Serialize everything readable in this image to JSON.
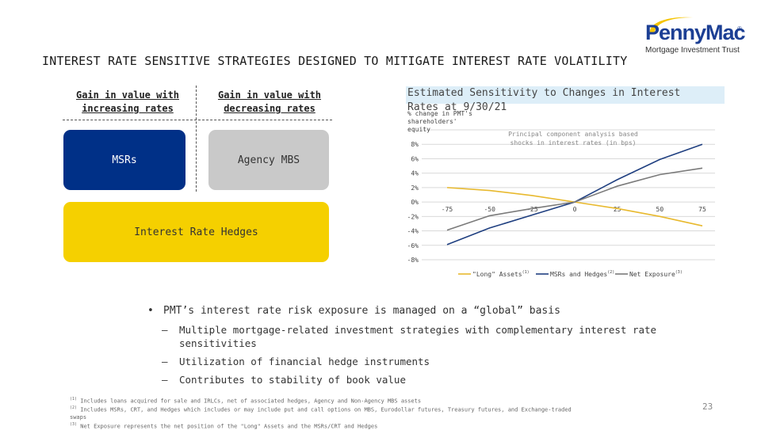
{
  "logo": {
    "name": "PennyMac",
    "registered": "®",
    "tagline": "Mortgage Investment Trust",
    "colors": {
      "blue": "#1c3f94",
      "gold": "#f5c400"
    }
  },
  "slide_title": "INTEREST RATE SENSITIVE STRATEGIES DESIGNED TO MITIGATE INTEREST RATE VOLATILITY",
  "diagram": {
    "head_increasing": "Gain in value with increasing rates",
    "head_decreasing": "Gain in value with decreasing rates",
    "box_msrs": "MSRs",
    "box_agency": "Agency MBS",
    "box_hedges": "Interest Rate Hedges",
    "colors": {
      "msrs": "#003087",
      "agency": "#c9c9c9",
      "hedges": "#f5d000"
    }
  },
  "chart_data": {
    "type": "line",
    "title": "Estimated Sensitivity to Changes in Interest Rates at 9/30/21",
    "ylabel": "% change in PMT's shareholders' equity",
    "annotation": "Principal component analysis based shocks in interest rates (in bps)",
    "x": [
      -75,
      -50,
      -25,
      0,
      25,
      50,
      75
    ],
    "x_ticks": [
      "-75",
      "-50",
      "-25",
      "0",
      "25",
      "50",
      "75"
    ],
    "y_ticks": [
      "-8%",
      "-6%",
      "-4%",
      "-2%",
      "0%",
      "2%",
      "4%",
      "6%",
      "8%"
    ],
    "ylim": [
      -8,
      10
    ],
    "grid": true,
    "legend_position": "bottom",
    "series": [
      {
        "name": "\"Long\" Assets",
        "sup": "(1)",
        "color": "#e8b92e",
        "values": [
          2.0,
          1.6,
          0.9,
          0.0,
          -0.9,
          -2.0,
          -3.3
        ]
      },
      {
        "name": "MSRs and Hedges",
        "sup": "(2)",
        "color": "#1f3f80",
        "values": [
          -5.9,
          -3.6,
          -1.8,
          0.0,
          3.1,
          5.9,
          8.0
        ]
      },
      {
        "name": "Net Exposure",
        "sup": "(3)",
        "color": "#7a7a7a",
        "values": [
          -3.9,
          -1.9,
          -0.9,
          0.0,
          2.2,
          3.8,
          4.7
        ]
      }
    ]
  },
  "bullets": {
    "main": "PMT’s interest rate risk exposure is managed on a “global” basis",
    "subs": [
      "Multiple mortgage-related investment strategies with complementary interest rate sensitivities",
      "Utilization of financial hedge instruments",
      "Contributes to stability of book value"
    ]
  },
  "footnotes": [
    {
      "mark": "(1)",
      "text": "Includes loans acquired for sale and IRLCs, net of associated hedges, Agency and Non-Agency MBS assets"
    },
    {
      "mark": "(2)",
      "text": "Includes MSRs, CRT, and Hedges which includes or may include put and call options on MBS, Eurodollar futures, Treasury futures, and Exchange-traded swaps"
    },
    {
      "mark": "(3)",
      "text": "Net Exposure represents the net position of the \"Long\" Assets and the MSRs/CRT and Hedges"
    }
  ],
  "page_number": "23"
}
